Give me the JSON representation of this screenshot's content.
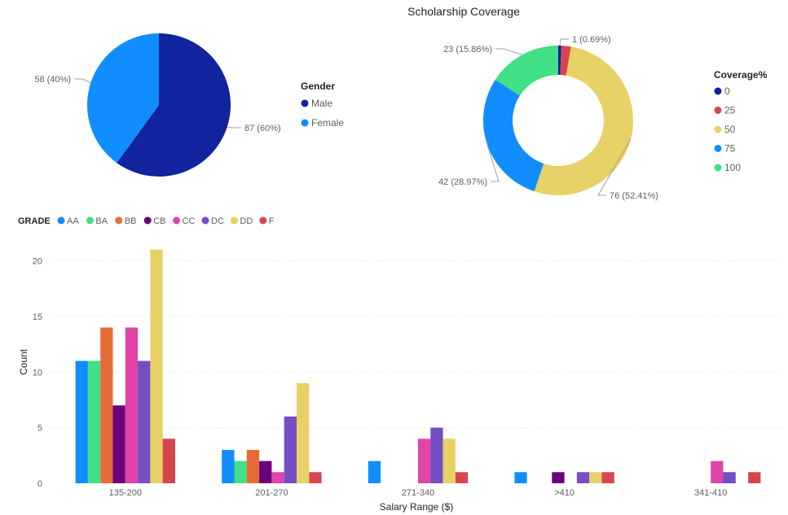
{
  "chart_data": [
    {
      "type": "pie",
      "title": "",
      "legend_title": "Gender",
      "legend_position": "right",
      "slices": [
        {
          "label": "Male",
          "value": 87,
          "data_label": "87 (60%)",
          "color": "#12239E"
        },
        {
          "label": "Female",
          "value": 58,
          "data_label": "58 (40%)",
          "color": "#118DFF"
        }
      ]
    },
    {
      "type": "pie",
      "subtype": "donut",
      "title": "Scholarship Coverage",
      "legend_title": "Coverage%",
      "legend_position": "right",
      "slices": [
        {
          "label": "0",
          "value": 1,
          "data_label": "1 (0.69%)",
          "color": "#12239E"
        },
        {
          "label": "25",
          "value": 3,
          "data_label": "",
          "color": "#D64550"
        },
        {
          "label": "50",
          "value": 76,
          "data_label": "76 (52.41%)",
          "color": "#E8D166"
        },
        {
          "label": "75",
          "value": 42,
          "data_label": "42 (28.97%)",
          "color": "#118DFF"
        },
        {
          "label": "100",
          "value": 23,
          "data_label": "23 (15.86%)",
          "color": "#41E086"
        }
      ]
    },
    {
      "type": "bar",
      "title": "",
      "legend_title": "GRADE",
      "legend_position": "top-left",
      "xlabel": "Salary Range ($)",
      "ylabel": "Count",
      "ylim": [
        0,
        21.5
      ],
      "yticks": [
        0,
        5,
        10,
        15,
        20
      ],
      "grid": true,
      "categories": [
        "135-200",
        "201-270",
        "271-340",
        ">410",
        "341-410"
      ],
      "series": [
        {
          "name": "AA",
          "color": "#118DFF",
          "values": [
            11,
            3,
            2,
            1,
            0
          ]
        },
        {
          "name": "BA",
          "color": "#41E086",
          "values": [
            11,
            2,
            0,
            0,
            0
          ]
        },
        {
          "name": "BB",
          "color": "#E66C37",
          "values": [
            14,
            3,
            0,
            0,
            0
          ]
        },
        {
          "name": "CB",
          "color": "#6B007B",
          "values": [
            7,
            2,
            0,
            1,
            0
          ]
        },
        {
          "name": "CC",
          "color": "#E044A7",
          "values": [
            14,
            1,
            4,
            0,
            2
          ]
        },
        {
          "name": "DC",
          "color": "#744EC2",
          "values": [
            11,
            6,
            5,
            1,
            1
          ]
        },
        {
          "name": "DD",
          "color": "#E8D166",
          "values": [
            21,
            9,
            4,
            1,
            0
          ]
        },
        {
          "name": "F",
          "color": "#D64550",
          "values": [
            4,
            1,
            1,
            1,
            1
          ]
        }
      ]
    }
  ]
}
